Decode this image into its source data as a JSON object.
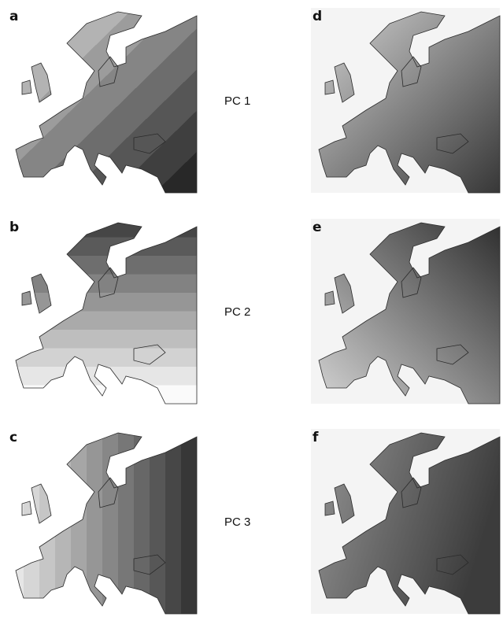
{
  "rows": [
    {
      "left_label": "a",
      "component": "PC 1",
      "right_label": "d"
    },
    {
      "left_label": "b",
      "component": "PC 2",
      "right_label": "e"
    },
    {
      "left_label": "c",
      "component": "PC 3",
      "right_label": "f"
    }
  ]
}
